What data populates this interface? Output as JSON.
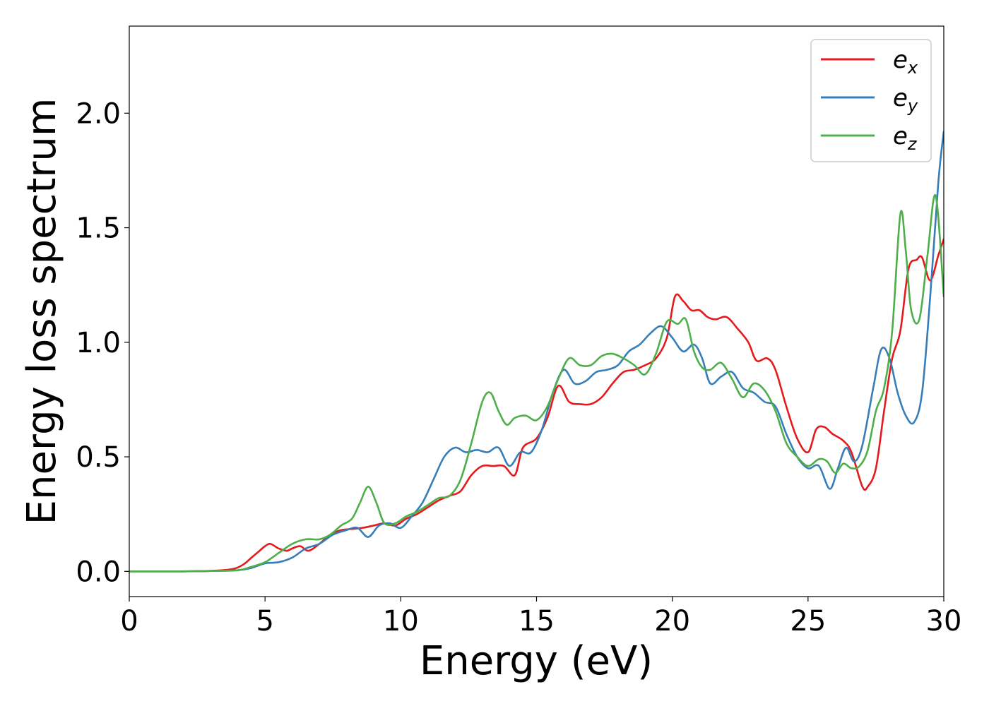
{
  "chart_data": {
    "type": "line",
    "title": "",
    "xlabel": "Energy (eV)",
    "ylabel": "Energy loss spectrum",
    "xlim": [
      0,
      30
    ],
    "ylim": [
      -0.11,
      2.38
    ],
    "xticks": [
      0,
      5,
      10,
      15,
      20,
      25,
      30
    ],
    "xtick_labels": [
      "0",
      "5",
      "10",
      "15",
      "20",
      "25",
      "30"
    ],
    "yticks": [
      0.0,
      0.5,
      1.0,
      1.5,
      2.0
    ],
    "ytick_labels": [
      "0.0",
      "0.5",
      "1.0",
      "1.5",
      "2.0"
    ],
    "grid": false,
    "legend_position": "top-right",
    "series": [
      {
        "name": "x",
        "legend_base": "e",
        "color": "#e41a1c",
        "x": [
          0,
          1,
          2,
          3,
          3.8,
          4.2,
          4.5,
          4.8,
          5.0,
          5.2,
          5.5,
          5.8,
          6.0,
          6.3,
          6.6,
          7.0,
          7.4,
          7.8,
          8.2,
          8.6,
          9.0,
          9.4,
          9.8,
          10.2,
          10.6,
          11.0,
          11.4,
          11.8,
          12.2,
          12.6,
          13.0,
          13.4,
          13.8,
          14.2,
          14.5,
          15.0,
          15.4,
          15.8,
          16.2,
          16.6,
          17.0,
          17.4,
          17.8,
          18.2,
          18.6,
          19.0,
          19.4,
          19.8,
          20.1,
          20.4,
          20.7,
          21.0,
          21.3,
          21.6,
          22.0,
          22.4,
          22.8,
          23.1,
          23.5,
          23.8,
          24.2,
          24.6,
          25.0,
          25.3,
          25.6,
          25.9,
          26.3,
          26.6,
          27.0,
          27.2,
          27.5,
          27.8,
          28.1,
          28.4,
          28.7,
          29.0,
          29.2,
          29.5,
          29.8,
          30.0
        ],
        "y": [
          0.0,
          0.0,
          0.0,
          0.002,
          0.01,
          0.03,
          0.06,
          0.09,
          0.11,
          0.12,
          0.1,
          0.09,
          0.1,
          0.11,
          0.09,
          0.12,
          0.16,
          0.18,
          0.185,
          0.19,
          0.2,
          0.21,
          0.2,
          0.23,
          0.25,
          0.28,
          0.31,
          0.33,
          0.35,
          0.42,
          0.46,
          0.46,
          0.46,
          0.42,
          0.54,
          0.58,
          0.67,
          0.81,
          0.74,
          0.73,
          0.73,
          0.76,
          0.82,
          0.87,
          0.88,
          0.9,
          0.93,
          1.02,
          1.2,
          1.18,
          1.14,
          1.14,
          1.11,
          1.1,
          1.11,
          1.06,
          1.0,
          0.92,
          0.93,
          0.88,
          0.72,
          0.58,
          0.52,
          0.62,
          0.63,
          0.6,
          0.57,
          0.52,
          0.37,
          0.37,
          0.45,
          0.7,
          0.93,
          1.05,
          1.32,
          1.36,
          1.37,
          1.27,
          1.38,
          1.45
        ]
      },
      {
        "name": "y",
        "legend_base": "e",
        "color": "#377eb8",
        "x": [
          0,
          1,
          2,
          3,
          4.0,
          4.5,
          5.0,
          5.5,
          6.0,
          6.5,
          7.0,
          7.5,
          8.0,
          8.4,
          8.8,
          9.2,
          9.6,
          10.0,
          10.4,
          10.8,
          11.2,
          11.6,
          12.0,
          12.4,
          12.8,
          13.2,
          13.6,
          14.0,
          14.4,
          14.8,
          15.2,
          15.6,
          16.0,
          16.4,
          16.8,
          17.2,
          17.6,
          18.0,
          18.4,
          18.8,
          19.2,
          19.6,
          20.0,
          20.4,
          20.8,
          21.1,
          21.4,
          21.8,
          22.2,
          22.6,
          23.0,
          23.4,
          23.8,
          24.2,
          24.6,
          25.0,
          25.4,
          25.8,
          26.1,
          26.4,
          26.7,
          27.0,
          27.4,
          27.7,
          28.0,
          28.3,
          28.6,
          28.9,
          29.2,
          29.5,
          29.8,
          30.0
        ],
        "y": [
          0.0,
          0.0,
          0.0,
          0.002,
          0.005,
          0.015,
          0.035,
          0.04,
          0.06,
          0.1,
          0.12,
          0.16,
          0.18,
          0.19,
          0.15,
          0.2,
          0.21,
          0.19,
          0.24,
          0.3,
          0.4,
          0.5,
          0.54,
          0.52,
          0.53,
          0.52,
          0.54,
          0.46,
          0.52,
          0.52,
          0.62,
          0.78,
          0.88,
          0.82,
          0.83,
          0.87,
          0.88,
          0.9,
          0.96,
          0.99,
          1.04,
          1.07,
          1.02,
          0.96,
          0.99,
          0.93,
          0.82,
          0.85,
          0.87,
          0.8,
          0.78,
          0.74,
          0.72,
          0.6,
          0.5,
          0.45,
          0.46,
          0.36,
          0.45,
          0.54,
          0.48,
          0.55,
          0.8,
          0.97,
          0.93,
          0.78,
          0.68,
          0.65,
          0.78,
          1.2,
          1.7,
          1.92
        ]
      },
      {
        "name": "z",
        "legend_base": "e",
        "color": "#4daf4a",
        "x": [
          0,
          1,
          2,
          3,
          4.0,
          4.5,
          5.0,
          5.5,
          6.0,
          6.5,
          7.0,
          7.4,
          7.8,
          8.2,
          8.5,
          8.8,
          9.1,
          9.4,
          9.8,
          10.2,
          10.6,
          11.0,
          11.4,
          11.8,
          12.2,
          12.6,
          13.0,
          13.3,
          13.6,
          13.9,
          14.2,
          14.6,
          15.0,
          15.4,
          15.8,
          16.2,
          16.6,
          17.0,
          17.4,
          17.8,
          18.2,
          18.6,
          19.0,
          19.4,
          19.8,
          20.2,
          20.5,
          20.8,
          21.1,
          21.4,
          21.8,
          22.2,
          22.6,
          23.0,
          23.4,
          23.8,
          24.2,
          24.6,
          25.0,
          25.4,
          25.7,
          26.0,
          26.3,
          26.6,
          26.9,
          27.2,
          27.5,
          27.8,
          28.1,
          28.4,
          28.6,
          28.8,
          29.1,
          29.4,
          29.7,
          30.0
        ],
        "y": [
          0.0,
          0.0,
          0.0,
          0.002,
          0.005,
          0.02,
          0.04,
          0.08,
          0.12,
          0.14,
          0.14,
          0.16,
          0.2,
          0.23,
          0.3,
          0.37,
          0.3,
          0.21,
          0.21,
          0.24,
          0.26,
          0.29,
          0.32,
          0.33,
          0.4,
          0.56,
          0.74,
          0.78,
          0.7,
          0.64,
          0.67,
          0.68,
          0.66,
          0.72,
          0.84,
          0.93,
          0.9,
          0.9,
          0.94,
          0.95,
          0.93,
          0.9,
          0.86,
          0.95,
          1.09,
          1.08,
          1.1,
          0.96,
          0.89,
          0.88,
          0.91,
          0.84,
          0.76,
          0.82,
          0.79,
          0.7,
          0.56,
          0.5,
          0.46,
          0.49,
          0.48,
          0.43,
          0.47,
          0.45,
          0.46,
          0.53,
          0.7,
          0.8,
          1.05,
          1.56,
          1.4,
          1.14,
          1.1,
          1.38,
          1.64,
          1.2
        ]
      }
    ]
  }
}
